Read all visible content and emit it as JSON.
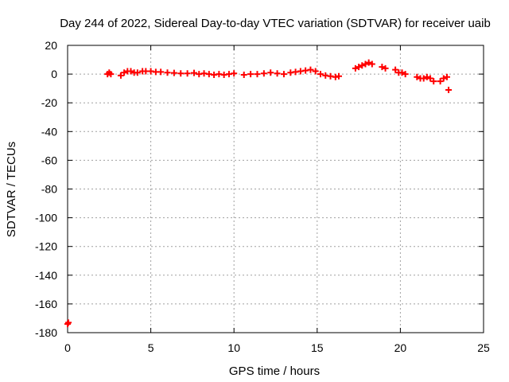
{
  "chart_data": {
    "type": "scatter",
    "title": "Day 244 of 2022, Sidereal Day-to-day VTEC variation (SDTVAR) for receiver uaib",
    "xlabel": "GPS time / hours",
    "ylabel": "SDTVAR / TECUs",
    "xlim": [
      0,
      25
    ],
    "ylim": [
      -180,
      20
    ],
    "xticks": [
      0,
      5,
      10,
      15,
      20,
      25
    ],
    "yticks": [
      20,
      0,
      -20,
      -40,
      -60,
      -80,
      -100,
      -120,
      -140,
      -160,
      -180
    ],
    "grid": true,
    "legend": "none",
    "marker": "plus",
    "color": "#ff0000",
    "series": [
      {
        "name": "",
        "x": [
          0.0,
          0.05,
          2.4,
          2.5,
          2.6,
          3.2,
          3.4,
          3.6,
          3.8,
          4.0,
          4.2,
          4.5,
          4.7,
          5.0,
          5.3,
          5.6,
          6.0,
          6.4,
          6.8,
          7.2,
          7.6,
          7.9,
          8.2,
          8.5,
          8.8,
          9.1,
          9.4,
          9.7,
          10.0,
          10.6,
          11.0,
          11.4,
          11.8,
          12.2,
          12.6,
          13.0,
          13.4,
          13.7,
          14.0,
          14.3,
          14.6,
          14.9,
          15.2,
          15.5,
          15.8,
          16.1,
          16.3,
          17.3,
          17.5,
          17.7,
          17.9,
          18.1,
          18.3,
          18.9,
          19.1,
          19.7,
          19.9,
          20.1,
          20.3,
          21.0,
          21.2,
          21.4,
          21.6,
          21.8,
          22.0,
          22.4,
          22.6,
          22.8,
          22.9
        ],
        "y": [
          -174,
          -173,
          0,
          1,
          0,
          -1,
          1,
          2,
          2,
          1,
          1,
          2,
          2,
          2,
          1.5,
          1.5,
          1,
          0.8,
          0.5,
          0.5,
          0.8,
          0,
          0.5,
          0,
          -0.5,
          0,
          -0.5,
          0,
          0.5,
          -0.5,
          0,
          0,
          0.5,
          1,
          0.5,
          0,
          1,
          1.5,
          2,
          2.5,
          3,
          2,
          0,
          -1,
          -1.5,
          -2,
          -1.5,
          4,
          5,
          6,
          7,
          8,
          7,
          5,
          4,
          3,
          1,
          1,
          0,
          -2,
          -3,
          -3,
          -2,
          -3,
          -5,
          -5,
          -3,
          -2,
          -11
        ]
      }
    ]
  }
}
